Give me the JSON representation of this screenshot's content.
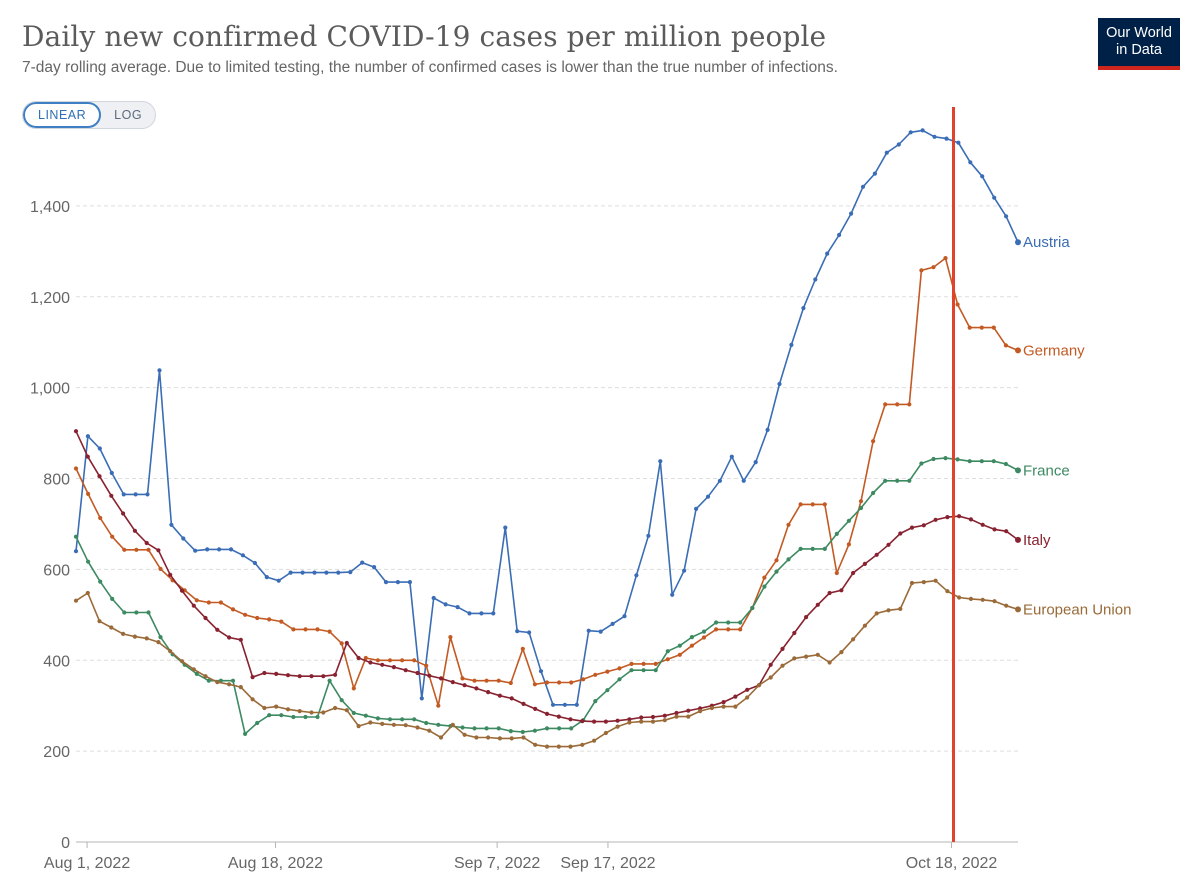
{
  "header": {
    "title": "Daily new confirmed COVID-19 cases per million people",
    "subtitle": "7-day rolling average. Due to limited testing, the number of confirmed cases is lower than the true number of infections.",
    "logo_line1": "Our World",
    "logo_line2": "in Data",
    "logo_bg": "#002147",
    "logo_accent": "#ce261e"
  },
  "scale_toggle": {
    "linear_label": "LINEAR",
    "log_label": "LOG",
    "selected": "LINEAR"
  },
  "chart_data": {
    "type": "line",
    "title": "Daily new confirmed COVID-19 cases per million people",
    "xlabel": "",
    "ylabel": "",
    "x_start": "2022-07-31",
    "x_end": "2022-10-24",
    "x_ticks": [
      {
        "label": "Aug 1, 2022",
        "date": "2022-08-01"
      },
      {
        "label": "Aug 18, 2022",
        "date": "2022-08-18"
      },
      {
        "label": "Sep 7, 2022",
        "date": "2022-09-07"
      },
      {
        "label": "Sep 17, 2022",
        "date": "2022-09-17"
      },
      {
        "label": "Oct 18, 2022",
        "date": "2022-10-18"
      }
    ],
    "ylim": [
      0,
      1600
    ],
    "y_ticks": [
      0,
      200,
      400,
      600,
      800,
      1000,
      1200,
      1400
    ],
    "y_tick_labels": [
      "0",
      "200",
      "400",
      "600",
      "800",
      "1,000",
      "1,200",
      "1,400"
    ],
    "grid": "horizontal dashed",
    "legend": "labels at right end of lines",
    "marker_line": {
      "date": "2022-10-18",
      "color": "#e2412c"
    },
    "series": [
      {
        "name": "Austria",
        "color": "#3a6db5",
        "values": [
          640,
          893,
          866,
          812,
          765,
          765,
          765,
          1038,
          698,
          668,
          641,
          644,
          644,
          644,
          631,
          614,
          583,
          575,
          593,
          593,
          593,
          593,
          593,
          594,
          615,
          605,
          572,
          572,
          572,
          316,
          537,
          523,
          517,
          503,
          503,
          503,
          692,
          464,
          461,
          376,
          302,
          302,
          302,
          465,
          463,
          480,
          497,
          587,
          674,
          838,
          544,
          597,
          733,
          760,
          795,
          848,
          795,
          836,
          907,
          1008,
          1094,
          1175,
          1238,
          1295,
          1336,
          1383,
          1442,
          1471,
          1517,
          1535,
          1562,
          1566,
          1552,
          1548,
          1539,
          1496,
          1465,
          1418,
          1377,
          1320
        ]
      },
      {
        "name": "Germany",
        "color": "#c35a23",
        "values": [
          822,
          766,
          713,
          672,
          643,
          643,
          643,
          601,
          576,
          554,
          532,
          527,
          527,
          512,
          500,
          493,
          490,
          485,
          468,
          468,
          468,
          463,
          437,
          338,
          405,
          400,
          400,
          400,
          400,
          388,
          300,
          451,
          360,
          355,
          355,
          355,
          350,
          425,
          347,
          351,
          351,
          351,
          358,
          368,
          375,
          382,
          392,
          392,
          392,
          402,
          412,
          432,
          450,
          468,
          468,
          468,
          515,
          582,
          620,
          698,
          743,
          743,
          743,
          592,
          655,
          750,
          882,
          963,
          963,
          963,
          1258,
          1265,
          1285,
          1183,
          1132,
          1132,
          1132,
          1093,
          1082
        ]
      },
      {
        "name": "France",
        "color": "#3d8a62",
        "values": [
          672,
          617,
          573,
          535,
          505,
          505,
          505,
          451,
          413,
          390,
          370,
          355,
          355,
          355,
          238,
          262,
          279,
          279,
          275,
          275,
          275,
          355,
          312,
          284,
          278,
          272,
          270,
          270,
          270,
          262,
          258,
          255,
          252,
          250,
          250,
          250,
          244,
          242,
          245,
          250,
          250,
          250,
          268,
          310,
          334,
          358,
          378,
          378,
          378,
          420,
          432,
          451,
          463,
          483,
          483,
          483,
          515,
          562,
          595,
          622,
          645,
          645,
          645,
          678,
          707,
          735,
          768,
          795,
          795,
          795,
          833,
          843,
          845,
          842,
          838,
          838,
          838,
          832,
          818
        ]
      },
      {
        "name": "Italy",
        "color": "#882230",
        "values": [
          904,
          848,
          805,
          762,
          723,
          685,
          658,
          642,
          588,
          553,
          520,
          493,
          467,
          450,
          445,
          363,
          372,
          370,
          367,
          365,
          365,
          365,
          368,
          438,
          405,
          395,
          390,
          385,
          378,
          372,
          366,
          360,
          352,
          345,
          338,
          330,
          322,
          316,
          304,
          293,
          282,
          276,
          270,
          266,
          265,
          265,
          267,
          270,
          274,
          275,
          278,
          284,
          289,
          294,
          300,
          308,
          320,
          335,
          345,
          390,
          425,
          460,
          495,
          522,
          548,
          554,
          592,
          612,
          632,
          654,
          679,
          692,
          697,
          709,
          715,
          717,
          710,
          698,
          688,
          684,
          665
        ]
      },
      {
        "name": "European Union",
        "color": "#9a6a38",
        "values": [
          531,
          548,
          486,
          472,
          458,
          452,
          448,
          440,
          420,
          398,
          380,
          365,
          352,
          347,
          341,
          314,
          295,
          298,
          292,
          288,
          285,
          285,
          295,
          290,
          255,
          263,
          260,
          258,
          257,
          252,
          245,
          230,
          258,
          236,
          230,
          230,
          228,
          228,
          230,
          214,
          210,
          210,
          210,
          214,
          223,
          240,
          254,
          263,
          265,
          265,
          268,
          276,
          276,
          288,
          295,
          298,
          298,
          318,
          345,
          362,
          388,
          404,
          408,
          412,
          395,
          418,
          446,
          476,
          503,
          510,
          513,
          570,
          572,
          575,
          552,
          538,
          535,
          533,
          530,
          520,
          512
        ]
      }
    ]
  }
}
